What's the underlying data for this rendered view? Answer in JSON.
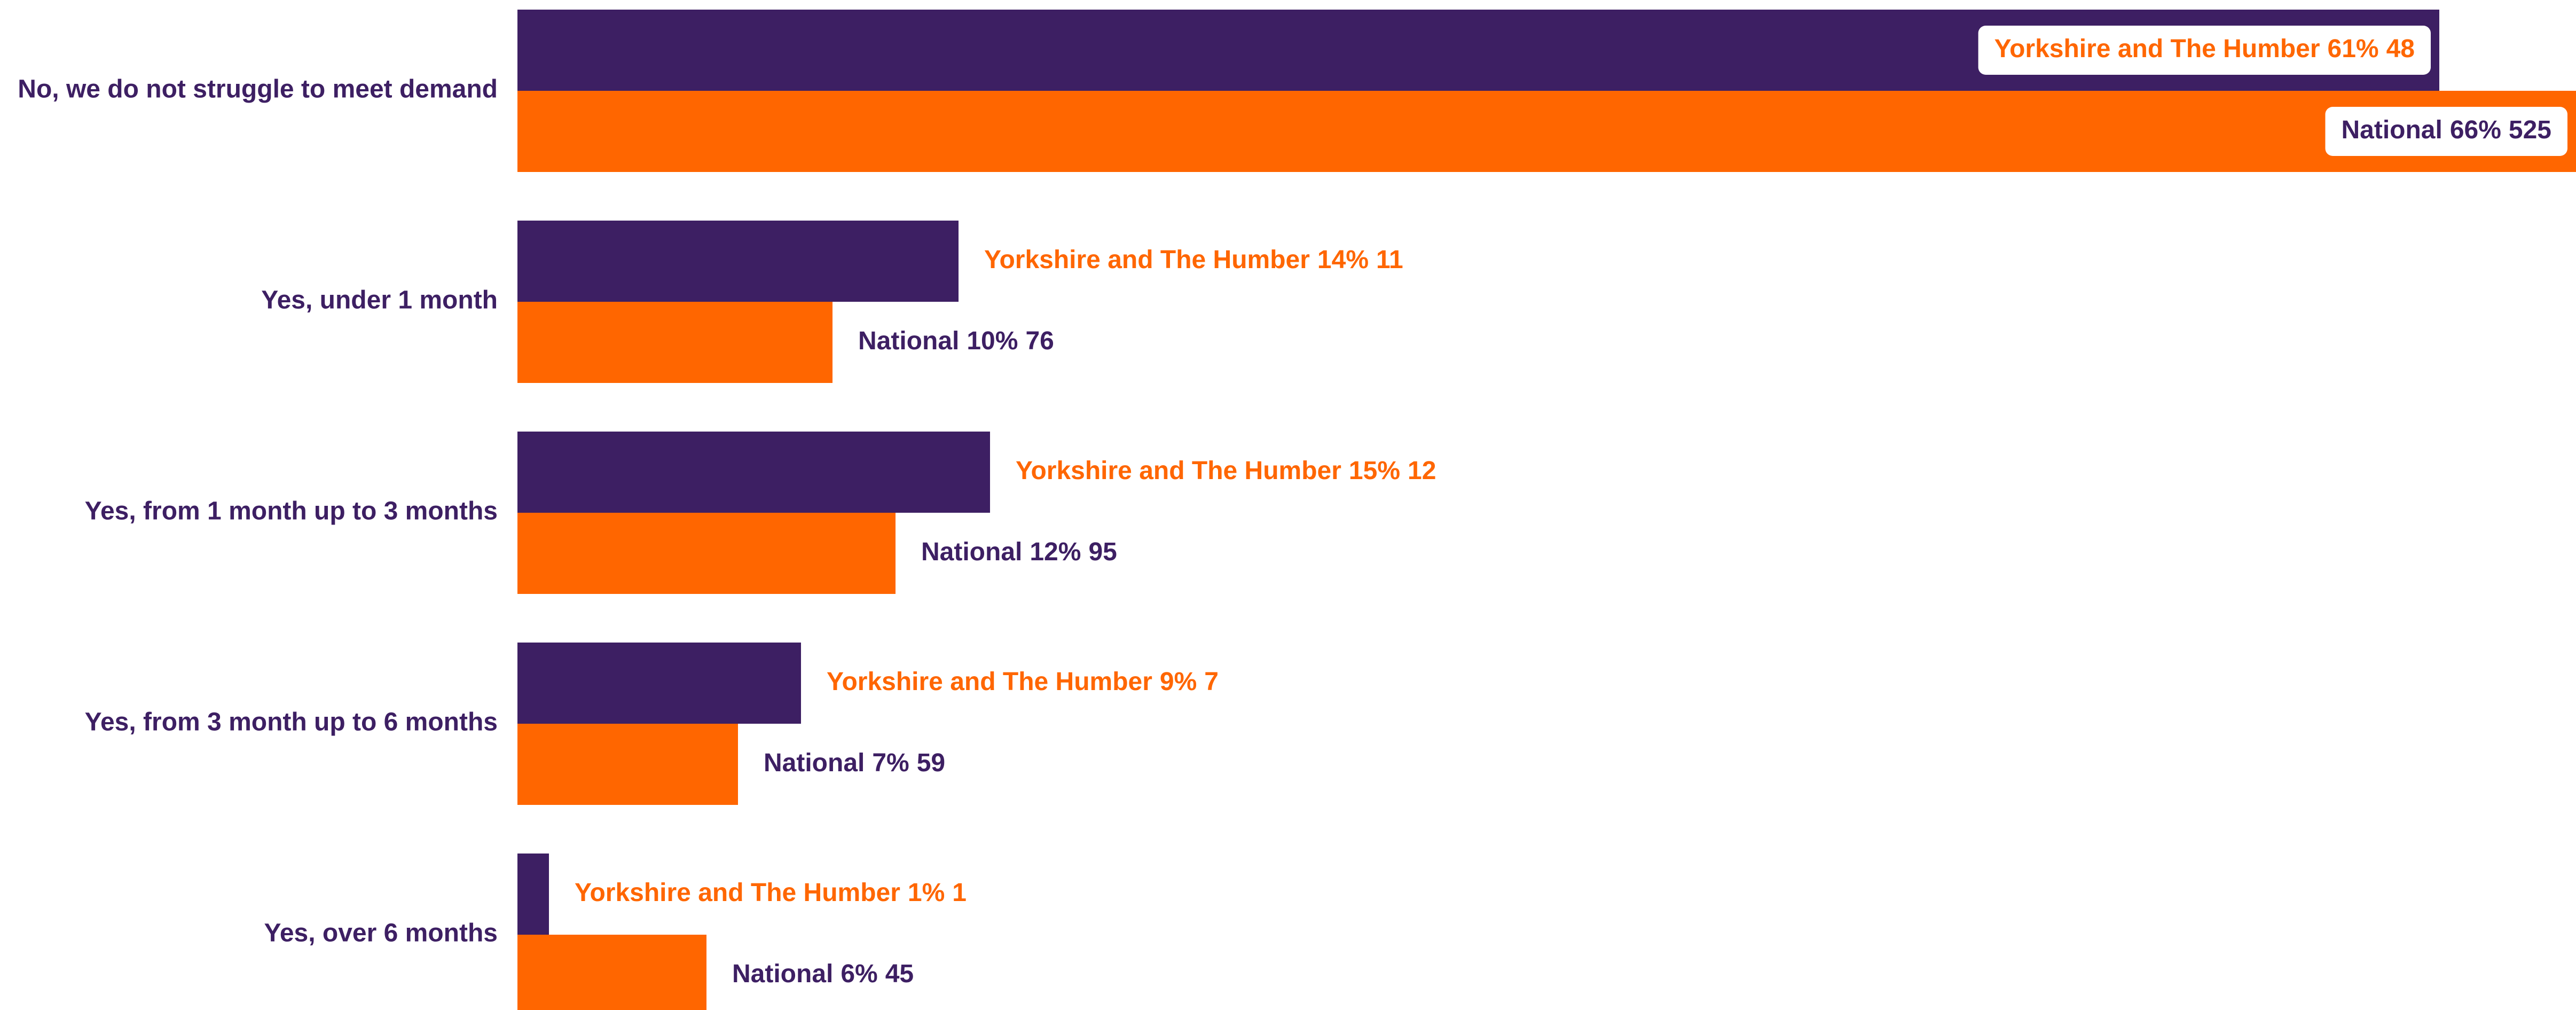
{
  "chart_data": {
    "type": "bar",
    "orientation": "horizontal",
    "categories": [
      "No, we do not struggle to meet demand",
      "Yes, under 1 month",
      "Yes, from 1 month up to 3 months",
      "Yes, from 3 month up to 6 months",
      "Yes, over 6 months"
    ],
    "series": [
      {
        "name": "Yorkshire and The Humber",
        "color": "#3d1f63",
        "values": [
          61,
          14,
          15,
          9,
          1
        ],
        "value_labels": [
          "61%",
          "14%",
          "15%",
          "9%",
          "1%"
        ],
        "counts": [
          48,
          11,
          12,
          7,
          1
        ]
      },
      {
        "name": "National",
        "color": "#ff6600",
        "values": [
          66,
          10,
          12,
          7,
          6
        ],
        "value_labels": [
          "66%",
          "10%",
          "12%",
          "7%",
          "6%"
        ],
        "counts": [
          525,
          76,
          95,
          59,
          45
        ]
      }
    ]
  }
}
